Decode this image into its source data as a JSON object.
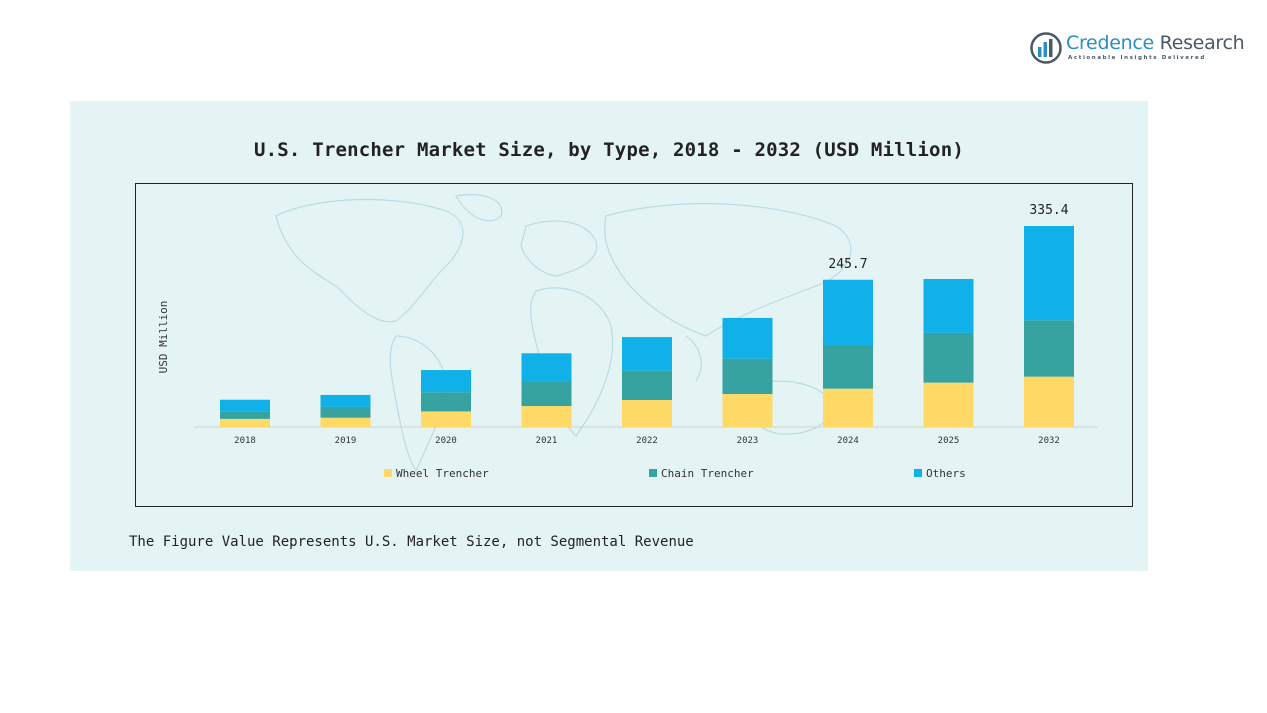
{
  "brand": {
    "name_part1": "Credence",
    "name_part2": "Research",
    "tagline": "Actionable Insights Delivered",
    "colors": {
      "primary": "#2a8fc0",
      "secondary": "#4a5966"
    }
  },
  "background_color": "#e4f4f4",
  "chart_data": {
    "type": "bar",
    "stacked": true,
    "title": "U.S. Trencher Market Size, by Type, 2018 - 2032 (USD Million)",
    "ylabel": "USD Million",
    "xlabel": "",
    "categories": [
      "2018",
      "2019",
      "2020",
      "2021",
      "2022",
      "2023",
      "2024",
      "2025",
      "2032"
    ],
    "ylim": [
      0,
      335.4
    ],
    "series": [
      {
        "name": "Wheel Trencher",
        "color": "#ffd966",
        "values": [
          13.5,
          15.5,
          26,
          35,
          45,
          55,
          64,
          74,
          84
        ]
      },
      {
        "name": "Chain Trencher",
        "color": "#36a3a0",
        "values": [
          12,
          18,
          32,
          41,
          49,
          59,
          72,
          83,
          94
        ]
      },
      {
        "name": "Others",
        "color": "#10b0e8",
        "values": [
          20,
          20,
          37,
          47,
          56,
          68,
          109.7,
          90,
          157.4
        ]
      }
    ],
    "data_labels": [
      {
        "category": "2024",
        "text": "245.7"
      },
      {
        "category": "2032",
        "text": "335.4"
      }
    ],
    "legend_position": "bottom",
    "grid": false
  },
  "footnote": "The Figure Value Represents U.S. Market Size, not Segmental Revenue"
}
